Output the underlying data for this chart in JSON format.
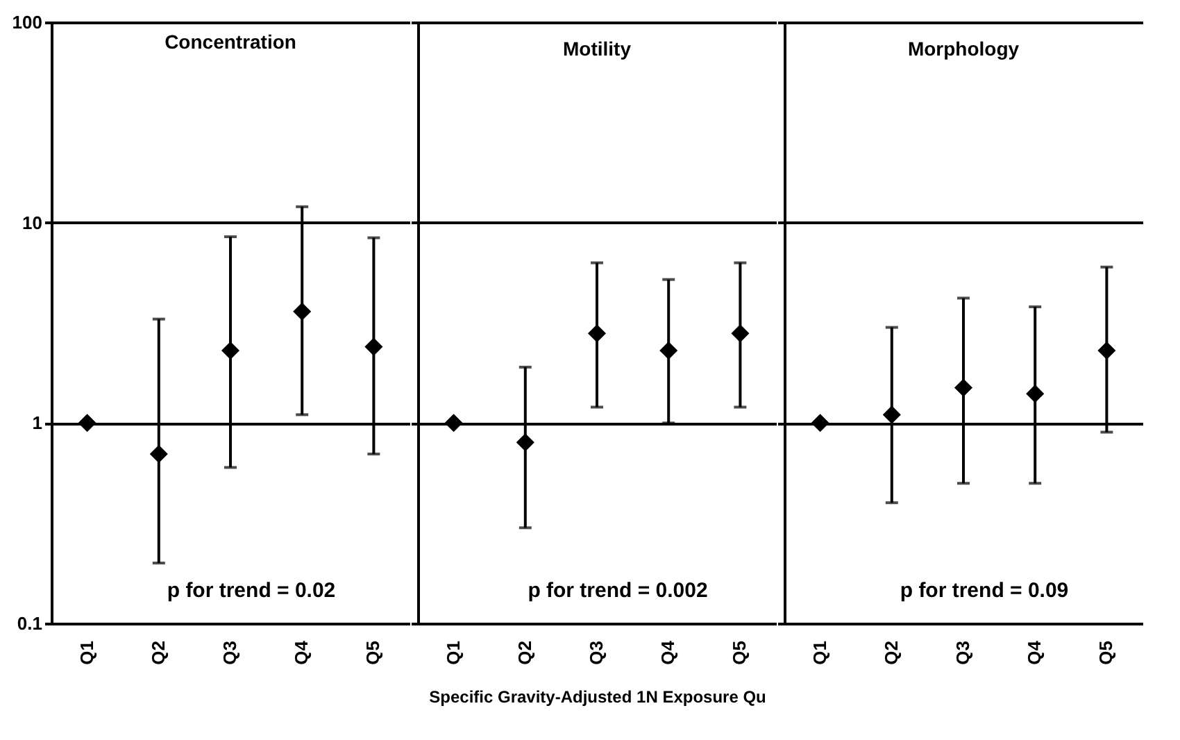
{
  "chart_data": [
    {
      "type": "scatter",
      "title": "Concentration",
      "categories": [
        "Q1",
        "Q2",
        "Q3",
        "Q4",
        "Q5"
      ],
      "values": [
        1,
        0.7,
        2.3,
        3.6,
        2.4
      ],
      "errors": [
        null,
        [
          0.2,
          3.3
        ],
        [
          0.6,
          8.5
        ],
        [
          1.1,
          12
        ],
        [
          0.7,
          8.4
        ]
      ],
      "color": "#000000",
      "marker": "diamond",
      "log": true,
      "ylim": [
        0.1,
        100
      ],
      "yticks": [
        0.1,
        1,
        10,
        100
      ],
      "grid": "y",
      "annotations": [
        "p  for trend = 0.02"
      ]
    },
    {
      "type": "scatter",
      "title": "Motility",
      "categories": [
        "Q1",
        "Q2",
        "Q3",
        "Q4",
        "Q5"
      ],
      "values": [
        1,
        0.8,
        2.8,
        2.3,
        2.8
      ],
      "errors": [
        null,
        [
          0.3,
          1.9
        ],
        [
          1.2,
          6.3
        ],
        [
          1.0,
          5.2
        ],
        [
          1.2,
          6.3
        ]
      ],
      "color": "#000000",
      "marker": "diamond",
      "log": true,
      "ylim": [
        0.1,
        100
      ],
      "yticks": [
        0.1,
        1,
        10,
        100
      ],
      "grid": "y",
      "tick_labels": "x",
      "xlabel": "Specific Gravity-Adjusted 1N Exposure Qu",
      "annotations": [
        "p  for trend = 0.002"
      ]
    },
    {
      "type": "scatter",
      "title": "Morphology",
      "categories": [
        "Q1",
        "Q2",
        "Q3",
        "Q4",
        "Q5"
      ],
      "values": [
        1,
        1.1,
        1.5,
        1.4,
        2.3
      ],
      "errors": [
        null,
        [
          0.4,
          3.0
        ],
        [
          0.5,
          4.2
        ],
        [
          0.5,
          3.8
        ],
        [
          0.9,
          6.0
        ]
      ],
      "color": "#000000",
      "marker": "diamond",
      "log": true,
      "ylim": [
        0.1,
        100
      ],
      "yticks": [
        0.1,
        1,
        10,
        100
      ],
      "grid": "y",
      "tick_labels": "x",
      "annotations": [
        "p  for trend = 0.09"
      ]
    }
  ]
}
